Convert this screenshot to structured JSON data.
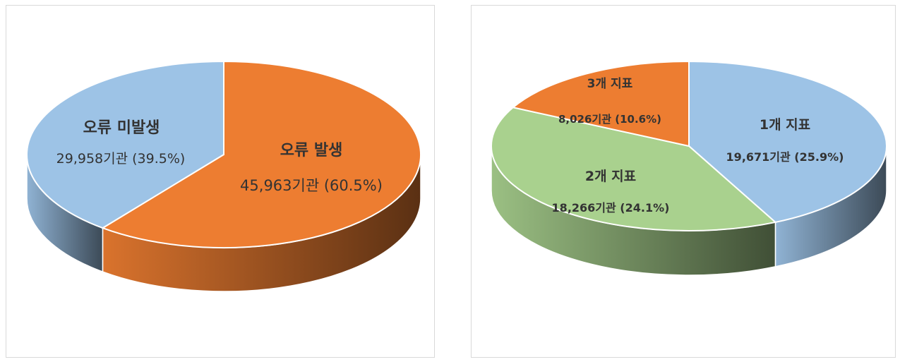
{
  "chart_data": [
    {
      "type": "pie",
      "title": "",
      "slices": [
        {
          "label": "오류 발생",
          "value_text": "45,963기관 (60.5%)",
          "value": 45963,
          "percent": 60.5,
          "color": "#ED7D31"
        },
        {
          "label": "오류 미발생",
          "value_text": "29,958기관 (39.5%)",
          "value": 29958,
          "percent": 39.5,
          "color": "#9DC3E6"
        }
      ]
    },
    {
      "type": "pie",
      "title": "",
      "slices": [
        {
          "label": "1개 지표",
          "value_text": "19,671기관 (25.9%)",
          "value": 19671,
          "percent": 25.9,
          "color": "#9DC3E6"
        },
        {
          "label": "2개 지표",
          "value_text": "18,266기관 (24.1%)",
          "value": 18266,
          "percent": 24.1,
          "color": "#A9D18E"
        },
        {
          "label": "3개 지표",
          "value_text": "8,026기관 (10.6%)",
          "value": 8026,
          "percent": 10.6,
          "color": "#ED7D31"
        }
      ]
    }
  ]
}
